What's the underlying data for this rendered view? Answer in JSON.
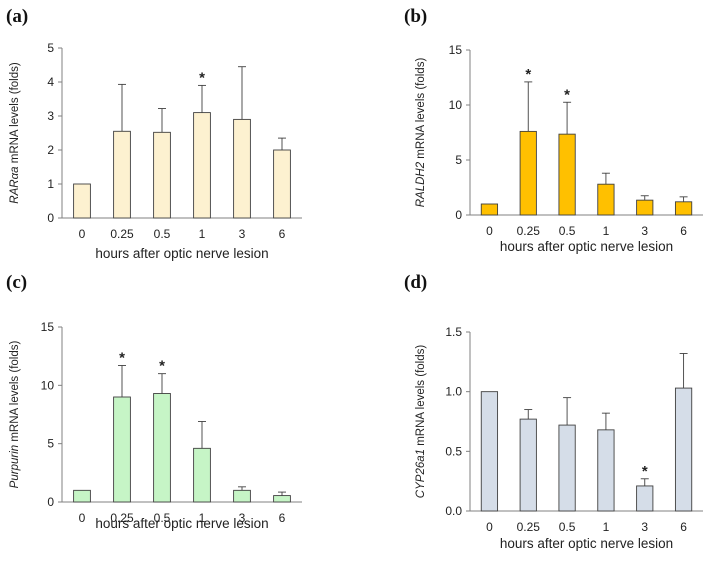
{
  "chart_data": [
    {
      "type": "bar",
      "panel_label": "(a)",
      "categories": [
        "0",
        "0.25",
        "0.5",
        "1",
        "3",
        "6"
      ],
      "values": [
        1.0,
        2.55,
        2.52,
        3.1,
        2.9,
        2.0
      ],
      "errors": [
        0,
        1.38,
        0.7,
        0.8,
        1.55,
        0.35
      ],
      "significant": [
        "",
        "",
        "",
        "*",
        "",
        ""
      ],
      "xlabel": "hours after optic nerve lesion",
      "ylabel_gene": "RARαa",
      "ylabel_rest": " mRNA levels (folds)",
      "ylim": [
        0,
        5
      ],
      "yticks": [
        "0",
        "1",
        "2",
        "3",
        "4",
        "5"
      ],
      "bar_color": "#fdf1d0"
    },
    {
      "type": "bar",
      "panel_label": "(b)",
      "categories": [
        "0",
        "0.25",
        "0.5",
        "1",
        "3",
        "6"
      ],
      "values": [
        1.0,
        7.6,
        7.35,
        2.8,
        1.35,
        1.2
      ],
      "errors": [
        0,
        4.5,
        2.9,
        1.0,
        0.4,
        0.45
      ],
      "significant": [
        "",
        "*",
        "*",
        "",
        "",
        ""
      ],
      "xlabel": "hours after optic nerve lesion",
      "ylabel_gene": "RALDH2",
      "ylabel_rest": " mRNA levels (folds)",
      "ylim": [
        0,
        15
      ],
      "yticks": [
        "0",
        "5",
        "10",
        "15"
      ],
      "bar_color": "#ffc000"
    },
    {
      "type": "bar",
      "panel_label": "(c)",
      "categories": [
        "0",
        "0.25",
        "0.5",
        "1",
        "3",
        "6"
      ],
      "values": [
        1.0,
        9.0,
        9.3,
        4.6,
        1.0,
        0.55
      ],
      "errors": [
        0,
        2.7,
        1.7,
        2.3,
        0.3,
        0.3
      ],
      "significant": [
        "",
        "*",
        "*",
        "",
        "",
        ""
      ],
      "xlabel": "hours after optic nerve lesion",
      "ylabel_gene": "Purpurin",
      "ylabel_rest": " mRNA levels (folds)",
      "ylim": [
        0,
        15
      ],
      "yticks": [
        "0",
        "5",
        "10",
        "15"
      ],
      "bar_color": "#c6f5c6"
    },
    {
      "type": "bar",
      "panel_label": "(d)",
      "categories": [
        "0",
        "0.25",
        "0.5",
        "1",
        "3",
        "6"
      ],
      "values": [
        1.0,
        0.77,
        0.72,
        0.68,
        0.21,
        1.03
      ],
      "errors": [
        0,
        0.08,
        0.23,
        0.14,
        0.06,
        0.29
      ],
      "significant": [
        "",
        "",
        "",
        "",
        "*",
        ""
      ],
      "xlabel": "hours after optic nerve lesion",
      "ylabel_gene": "CYP26a1",
      "ylabel_rest": "  mRNA levels (folds)",
      "ylim": [
        0,
        1.5
      ],
      "yticks": [
        "0.0",
        "0.5",
        "1.0",
        "1.5"
      ],
      "bar_color": "#d5dde8"
    }
  ]
}
